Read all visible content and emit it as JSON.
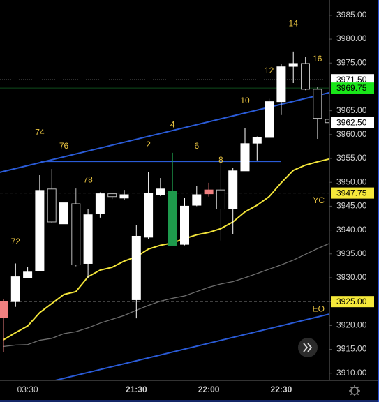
{
  "chart_data": {
    "type": "candlestick",
    "categories": [
      null,
      null,
      "03:30",
      null,
      null,
      null,
      null,
      null,
      null,
      null,
      null,
      "21:30",
      null,
      null,
      null,
      null,
      null,
      "22:00",
      null,
      null,
      null,
      null,
      null,
      "22:30",
      null,
      null,
      null,
      null
    ],
    "open": [
      3925,
      3925,
      3930,
      3931.5,
      3948.6,
      3941.3,
      3945.5,
      3933,
      3943.5,
      3947.6,
      3946.7,
      3925.4,
      3938.5,
      3947.4,
      3936.8,
      3937,
      3945.2,
      3948.4,
      3948.4,
      3944.4,
      3952.4,
      3958.2,
      3959.4,
      3966.9,
      3974.3,
      3974.9,
      3969.5,
      3963.2
    ],
    "high": [
      3925.5,
      3933,
      3932.2,
      3951.5,
      3952.8,
      3952,
      3948.7,
      3944.4,
      3947.9,
      3947.6,
      3948.4,
      3941.1,
      3952.1,
      3950.9,
      3956.2,
      3946.8,
      3949.3,
      3949.9,
      3954.9,
      3953.1,
      3961.3,
      3959.6,
      3967.5,
      3974.8,
      3977.4,
      3976.2,
      3970,
      3963.5
    ],
    "low": [
      3914.4,
      3923.9,
      3929.9,
      3931.5,
      3941.4,
      3940.3,
      3932.4,
      3930,
      3942.6,
      3946.5,
      3946.3,
      3921.5,
      3938.1,
      3947.1,
      3936.8,
      3936.8,
      3945,
      3947,
      3937.8,
      3939.1,
      3952.4,
      3954.6,
      3959.4,
      3964.1,
      3970.8,
      3969.3,
      3959.1,
      3962.2
    ],
    "close": [
      3921.7,
      3930.2,
      3931.2,
      3948.3,
      3941.7,
      3945.7,
      3932.7,
      3943.2,
      3947.6,
      3947,
      3947.4,
      3938.7,
      3947.7,
      3948.6,
      3948.2,
      3945,
      3947.4,
      3947.6,
      3944.4,
      3952.4,
      3958.1,
      3959.4,
      3966.9,
      3974.2,
      3974.9,
      3969.5,
      3963.4,
      3962.5
    ],
    "candle_colors": [
      "#f08080",
      "#ffffff",
      "#ffffff",
      "#ffffff",
      "#000000",
      "#ffffff",
      "#000000",
      "#ffffff",
      "#ffffff",
      "#000000",
      "#ffffff",
      "#ffffff",
      "#ffffff",
      "#ffffff",
      "#1e9a4c",
      "#ffffff",
      "#ffffff",
      "#f08080",
      "#000000",
      "#ffffff",
      "#ffffff",
      "#ffffff",
      "#ffffff",
      "#ffffff",
      "#ffffff",
      "#000000",
      "#000000",
      "#000000"
    ],
    "series": [
      {
        "color": "#f2e43a",
        "values": [
          3917,
          3918.5,
          3919.9,
          3922.7,
          3924.6,
          3926.5,
          3927.1,
          3930.2,
          3931.6,
          3932.2,
          3933.5,
          3934.4,
          3936,
          3936.8,
          3937.3,
          3938.2,
          3939,
          3939.5,
          3940.3,
          3941.7,
          3943.8,
          3945.2,
          3947,
          3949.9,
          3952.5,
          3953.6,
          3954.3,
          3954.9
        ]
      },
      {
        "color": "#6e6e6e",
        "values": [
          3915.6,
          3915.9,
          3916,
          3916.9,
          3917.3,
          3918.3,
          3918.7,
          3919.5,
          3920.5,
          3921.3,
          3922.1,
          3923.2,
          3924.2,
          3925.1,
          3925.7,
          3926.2,
          3927.1,
          3928,
          3928.7,
          3929.2,
          3930,
          3930.9,
          3931.8,
          3932.7,
          3933.7,
          3934.9,
          3936.1,
          3937.2
        ]
      }
    ],
    "trendlines": [
      {
        "color": "#2a5bd7",
        "start": [
          -0.3,
          3952.1
        ],
        "end": [
          27,
          3968.8
        ]
      },
      {
        "color": "#2a5bd7",
        "start": [
          3.1,
          3954.4
        ],
        "end": [
          23,
          3954.4
        ]
      },
      {
        "color": "#2a5bd7",
        "start": [
          4.3,
          3908.5
        ],
        "end": [
          27,
          3922.4
        ]
      }
    ],
    "price_lines": [
      {
        "value": 3971.5,
        "label": "3971.50",
        "color": "#ffffff",
        "text_color": "#000000",
        "line": "#bbbbbb",
        "dash": "1,2"
      },
      {
        "value": 3969.75,
        "label": "3969.75",
        "color": "#19e619",
        "text_color": "#000000",
        "line": "#0f4d1c",
        "dash": "none"
      },
      {
        "value": 3962.5,
        "label": "3962.50",
        "color": "#ffffff",
        "text_color": "#000000",
        "line": "none",
        "dash": "none"
      },
      {
        "value": 3947.75,
        "label": "3947.75",
        "color": "#f5e83a",
        "text_color": "#000000",
        "line": "#666666",
        "dash": "4,3",
        "tag": "YC"
      },
      {
        "value": 3925,
        "label": "3925.00",
        "color": "#f5e83a",
        "text_color": "#000000",
        "line": "#666666",
        "dash": "4,3",
        "tag": "EO"
      }
    ],
    "annotations": [
      {
        "text": "14",
        "x": 24,
        "y": 3983.2
      },
      {
        "text": "16",
        "x": 26,
        "y": 3975.8
      },
      {
        "text": "12",
        "x": 22,
        "y": 3973.3
      },
      {
        "text": "10",
        "x": 20,
        "y": 3967
      },
      {
        "text": "74",
        "x": 3,
        "y": 3960.4
      },
      {
        "text": "4",
        "x": 14,
        "y": 3962
      },
      {
        "text": "76",
        "x": 5,
        "y": 3957.5
      },
      {
        "text": "2",
        "x": 12,
        "y": 3957.8
      },
      {
        "text": "6",
        "x": 16,
        "y": 3957.5
      },
      {
        "text": "8",
        "x": 18,
        "y": 3954.6
      },
      {
        "text": "78",
        "x": 7,
        "y": 3950.4
      },
      {
        "text": "72",
        "x": 1,
        "y": 3937.5
      }
    ],
    "ylim": [
      3908.5,
      3988.2
    ],
    "yticks": [
      {
        "value": 3910,
        "label": "3910.00"
      },
      {
        "value": 3915,
        "label": "3915.00"
      },
      {
        "value": 3920,
        "label": "3920.00"
      },
      {
        "value": 3925,
        "label": "3925.00"
      },
      {
        "value": 3930,
        "label": "3930.00"
      },
      {
        "value": 3935,
        "label": "3935.00"
      },
      {
        "value": 3940,
        "label": "3940.00"
      },
      {
        "value": 3945,
        "label": "3945.00"
      },
      {
        "value": 3950,
        "label": "3950.00"
      },
      {
        "value": 3955,
        "label": "3955.00"
      },
      {
        "value": 3960,
        "label": "3960.00"
      },
      {
        "value": 3965,
        "label": "3965.00"
      },
      {
        "value": 3970,
        "label": "3970.00"
      },
      {
        "value": 3975,
        "label": "3975.00"
      },
      {
        "value": 3980,
        "label": "3980.00"
      },
      {
        "value": 3985,
        "label": "3985.00"
      }
    ]
  }
}
